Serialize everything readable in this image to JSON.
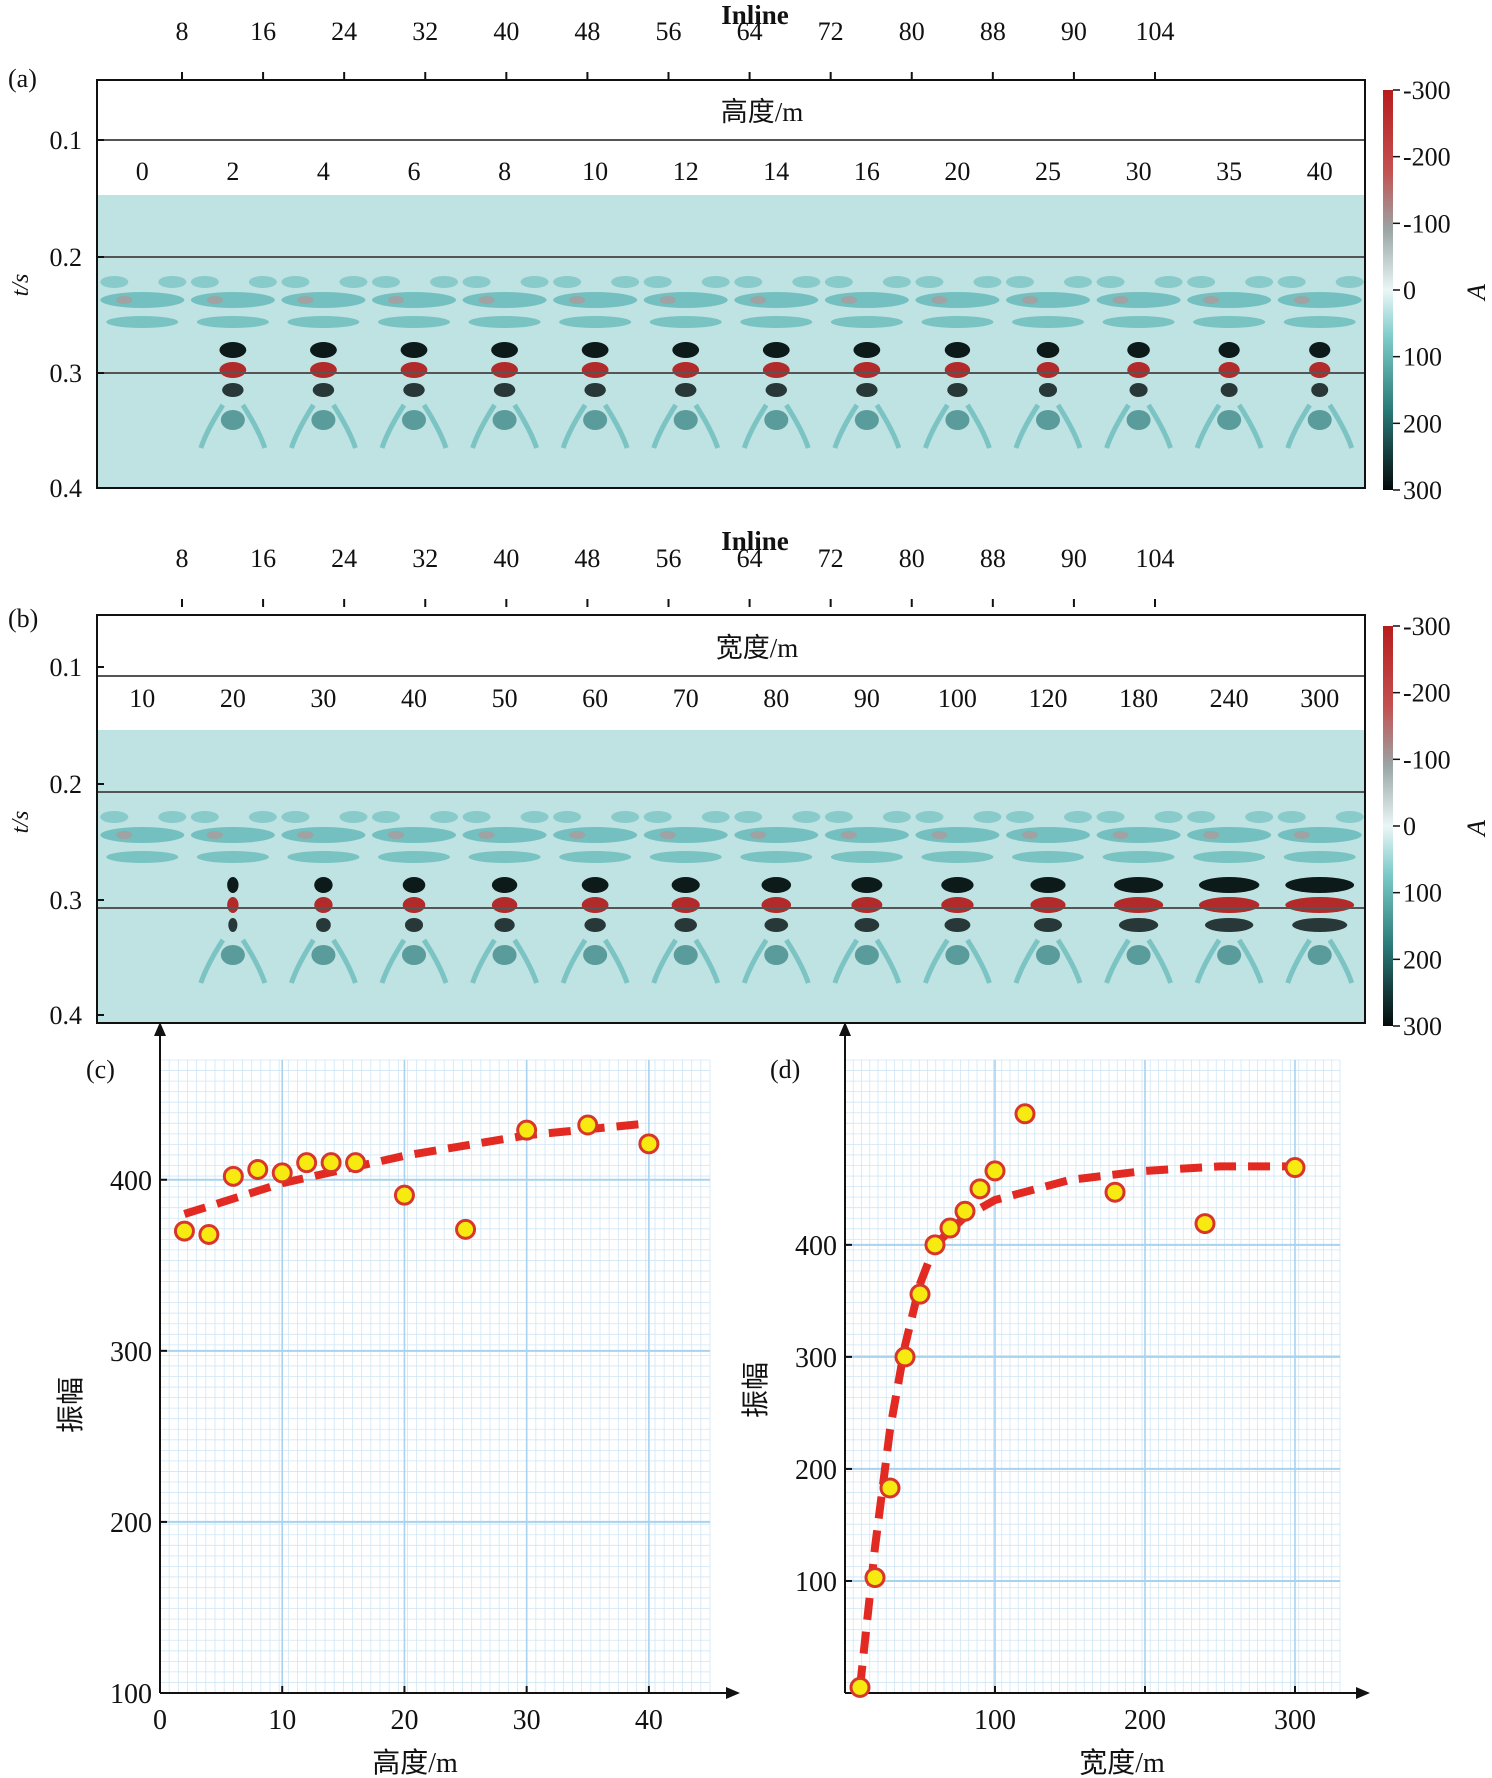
{
  "panel_a": {
    "label": "(a)",
    "inline_title": "Inline",
    "inline_ticks": [
      "8",
      "16",
      "24",
      "32",
      "40",
      "48",
      "56",
      "64",
      "72",
      "80",
      "88",
      "90",
      "104"
    ],
    "param_title": "高度/m",
    "param_values": [
      "0",
      "2",
      "4",
      "6",
      "8",
      "10",
      "12",
      "14",
      "16",
      "20",
      "25",
      "30",
      "35",
      "40"
    ],
    "ylabel": "t/s",
    "yticks": [
      "0.1",
      "0.2",
      "0.3",
      "0.4"
    ],
    "colorbar": {
      "label": "A",
      "ticks": [
        "-300",
        "-200",
        "-100",
        "0",
        "100",
        "200",
        "300"
      ]
    }
  },
  "panel_b": {
    "label": "(b)",
    "inline_title": "Inline",
    "inline_ticks": [
      "8",
      "16",
      "24",
      "32",
      "40",
      "48",
      "56",
      "64",
      "72",
      "80",
      "88",
      "90",
      "104"
    ],
    "param_title": "宽度/m",
    "param_values": [
      "10",
      "20",
      "30",
      "40",
      "50",
      "60",
      "70",
      "80",
      "90",
      "100",
      "120",
      "180",
      "240",
      "300"
    ],
    "ylabel": "t/s",
    "yticks": [
      "0.1",
      "0.2",
      "0.3",
      "0.4"
    ],
    "colorbar": {
      "label": "A",
      "ticks": [
        "-300",
        "-200",
        "-100",
        "0",
        "100",
        "200",
        "300"
      ]
    }
  },
  "colors": {
    "background": "#bfe2e2",
    "event": "#6cbdbd",
    "strong": "#0d1a1a",
    "red": "#b22a2a",
    "point_fill": "#f7ea10",
    "point_edge": "#d9362b",
    "fit": "#e32a22",
    "grid": "#cfe6f5"
  },
  "chart_data": [
    {
      "type": "scatter",
      "panel": "(c)",
      "xlabel": "高度/m",
      "ylabel": "振幅",
      "xlim": [
        0,
        45
      ],
      "ylim": [
        100,
        470
      ],
      "xticks": [
        0,
        10,
        20,
        30,
        40
      ],
      "yticks": [
        100,
        200,
        300,
        400
      ],
      "x": [
        2,
        4,
        6,
        8,
        10,
        12,
        14,
        16,
        20,
        25,
        30,
        35,
        40
      ],
      "y": [
        370,
        368,
        402,
        406,
        404,
        410,
        410,
        410,
        391,
        371,
        429,
        432,
        421
      ],
      "fit_x": [
        2,
        10,
        20,
        30,
        40
      ],
      "fit_y": [
        380,
        398,
        414,
        426,
        433
      ],
      "grid": true
    },
    {
      "type": "scatter",
      "panel": "(d)",
      "xlabel": "宽度/m",
      "ylabel": "振幅",
      "xlim": [
        0,
        330
      ],
      "ylim": [
        0,
        565
      ],
      "xticks": [
        100,
        200,
        300
      ],
      "yticks": [
        100,
        200,
        300,
        400
      ],
      "x": [
        10,
        20,
        30,
        40,
        50,
        60,
        70,
        80,
        90,
        100,
        120,
        180,
        240,
        300
      ],
      "y": [
        5,
        103,
        183,
        300,
        356,
        400,
        415,
        430,
        450,
        466,
        517,
        447,
        419,
        469
      ],
      "fit_x": [
        10,
        20,
        30,
        40,
        50,
        60,
        80,
        100,
        150,
        200,
        250,
        300
      ],
      "fit_y": [
        5,
        130,
        235,
        310,
        365,
        400,
        425,
        440,
        458,
        466,
        470,
        470
      ],
      "grid": true
    }
  ]
}
